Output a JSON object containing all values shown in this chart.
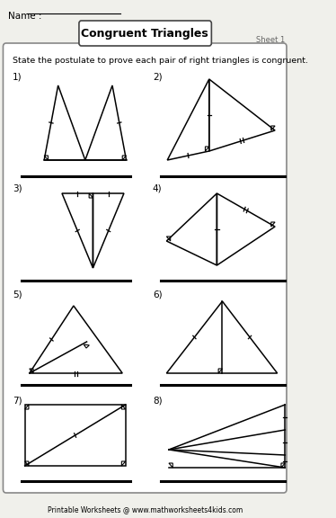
{
  "title": "Congruent Triangles",
  "sheet": "Sheet 1",
  "name_label": "Name :",
  "instruction": "State the postulate to prove each pair of right triangles is congruent.",
  "footer": "Printable Worksheets @ www.mathworksheets4kids.com",
  "bg_color": "#f0f0eb",
  "white": "#ffffff"
}
